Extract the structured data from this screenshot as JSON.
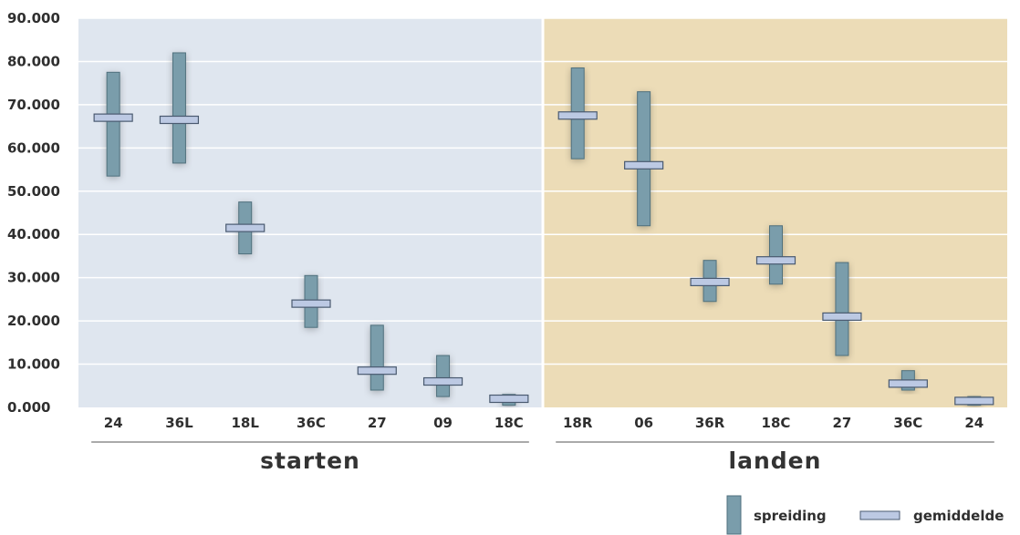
{
  "chart_data": {
    "type": "range-bar",
    "ylim": [
      0,
      90000
    ],
    "y_ticks": [
      "0.000",
      "10.000",
      "20.000",
      "30.000",
      "40.000",
      "50.000",
      "60.000",
      "70.000",
      "80.000",
      "90.000"
    ],
    "y_tick_values": [
      0,
      10000,
      20000,
      30000,
      40000,
      50000,
      60000,
      70000,
      80000,
      90000
    ],
    "grid": true,
    "legend_position": "bottom-right",
    "legend": [
      "spreiding",
      "gemiddelde"
    ],
    "colors": {
      "range_bar": "#7a9dab",
      "range_bar_stroke": "#4f6f7c",
      "mean_marker": "#bcc9e3",
      "mean_marker_stroke": "#4a5a70",
      "panel_starten": "#dfe6ef",
      "panel_landen": "#ecdcb7"
    },
    "groups": [
      {
        "name": "starten",
        "categories": [
          {
            "label": "24",
            "min": 53500,
            "max": 77500,
            "mean": 67000
          },
          {
            "label": "36L",
            "min": 56500,
            "max": 82000,
            "mean": 66500
          },
          {
            "label": "18L",
            "min": 35500,
            "max": 47500,
            "mean": 41500
          },
          {
            "label": "36C",
            "min": 18500,
            "max": 30500,
            "mean": 24000
          },
          {
            "label": "27",
            "min": 4000,
            "max": 19000,
            "mean": 8500
          },
          {
            "label": "09",
            "min": 2500,
            "max": 12000,
            "mean": 6000
          },
          {
            "label": "18C",
            "min": 500,
            "max": 3000,
            "mean": 2000
          }
        ]
      },
      {
        "name": "landen",
        "categories": [
          {
            "label": "18R",
            "min": 57500,
            "max": 78500,
            "mean": 67500
          },
          {
            "label": "06",
            "min": 42000,
            "max": 73000,
            "mean": 56000
          },
          {
            "label": "36R",
            "min": 24500,
            "max": 34000,
            "mean": 29000
          },
          {
            "label": "18C",
            "min": 28500,
            "max": 42000,
            "mean": 34000
          },
          {
            "label": "27",
            "min": 12000,
            "max": 33500,
            "mean": 21000
          },
          {
            "label": "36C",
            "min": 4000,
            "max": 8500,
            "mean": 5500
          },
          {
            "label": "24",
            "min": 500,
            "max": 2500,
            "mean": 1500
          }
        ]
      }
    ]
  }
}
